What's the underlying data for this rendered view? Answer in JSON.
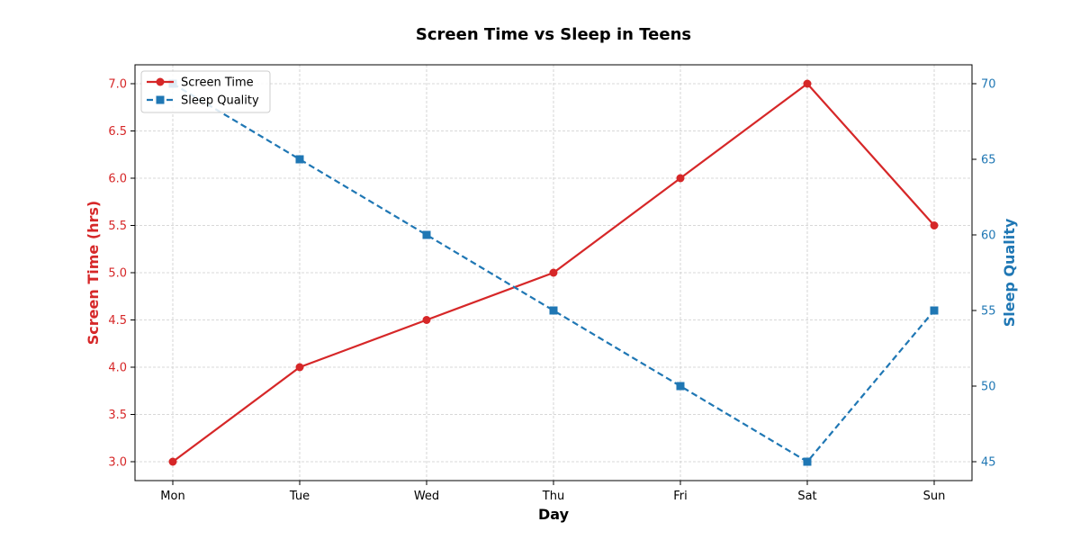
{
  "chart_data": {
    "type": "line",
    "title": "Screen Time vs Sleep in Teens",
    "xlabel": "Day",
    "categories": [
      "Mon",
      "Tue",
      "Wed",
      "Thu",
      "Fri",
      "Sat",
      "Sun"
    ],
    "series": [
      {
        "name": "Screen Time",
        "axis": "left",
        "ylabel": "Screen Time (hrs)",
        "color": "#d62728",
        "marker": "circle",
        "line_style": "solid",
        "values": [
          3.0,
          4.0,
          4.5,
          5.0,
          6.0,
          7.0,
          5.5
        ],
        "ylim": [
          2.8,
          7.2
        ],
        "ticks": [
          "3.0",
          "3.5",
          "4.0",
          "4.5",
          "5.0",
          "5.5",
          "6.0",
          "6.5",
          "7.0"
        ]
      },
      {
        "name": "Sleep Quality",
        "axis": "right",
        "ylabel": "Sleep Quality",
        "color": "#1f77b4",
        "marker": "square",
        "line_style": "dashed",
        "values": [
          70,
          65,
          60,
          55,
          50,
          45,
          55
        ],
        "ylim": [
          43.75,
          71.25
        ],
        "ticks": [
          "45",
          "50",
          "55",
          "60",
          "65",
          "70"
        ]
      }
    ],
    "grid": true,
    "legend_position": "top-left"
  }
}
